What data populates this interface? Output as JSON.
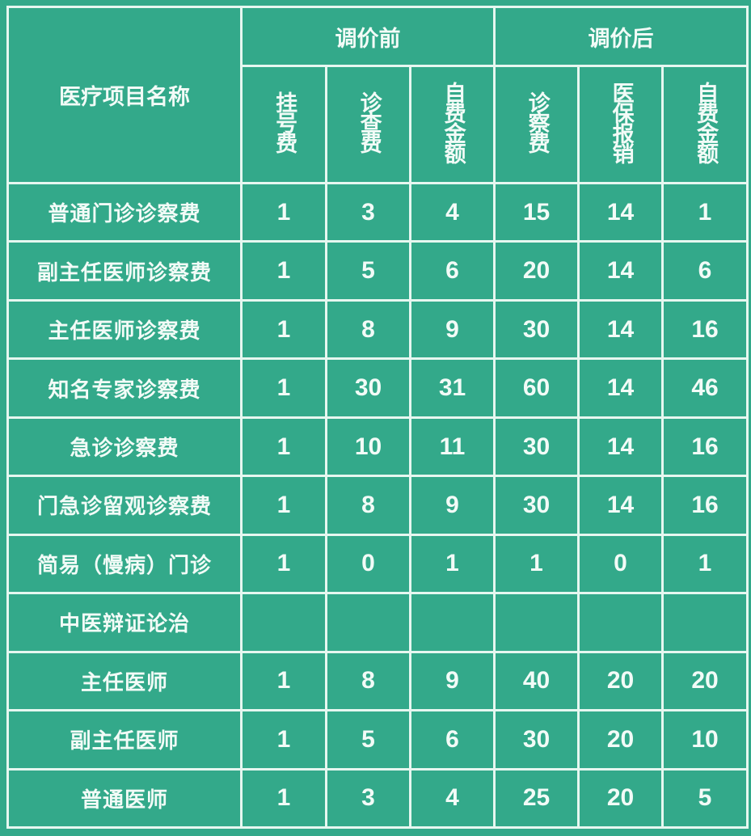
{
  "table": {
    "item_header": "医疗项目名称",
    "group_before": "调价前",
    "group_after": "调价后",
    "sub_headers": [
      "挂号费",
      "诊查费",
      "自费金额",
      "诊察费",
      "医保报销",
      "自费金额"
    ],
    "rows": [
      {
        "name": "普通门诊诊察费",
        "values": [
          "1",
          "3",
          "4",
          "15",
          "14",
          "1"
        ]
      },
      {
        "name": "副主任医师诊察费",
        "values": [
          "1",
          "5",
          "6",
          "20",
          "14",
          "6"
        ]
      },
      {
        "name": "主任医师诊察费",
        "values": [
          "1",
          "8",
          "9",
          "30",
          "14",
          "16"
        ]
      },
      {
        "name": "知名专家诊察费",
        "values": [
          "1",
          "30",
          "31",
          "60",
          "14",
          "46"
        ]
      },
      {
        "name": "急诊诊察费",
        "values": [
          "1",
          "10",
          "11",
          "30",
          "14",
          "16"
        ]
      },
      {
        "name": "门急诊留观诊察费",
        "values": [
          "1",
          "8",
          "9",
          "30",
          "14",
          "16"
        ]
      },
      {
        "name": "简易（慢病）门诊",
        "values": [
          "1",
          "0",
          "1",
          "1",
          "0",
          "1"
        ]
      },
      {
        "name": "中医辩证论治",
        "values": [
          "",
          "",
          "",
          "",
          "",
          ""
        ]
      },
      {
        "name": "主任医师",
        "values": [
          "1",
          "8",
          "9",
          "40",
          "20",
          "20"
        ]
      },
      {
        "name": "副主任医师",
        "values": [
          "1",
          "5",
          "6",
          "30",
          "20",
          "10"
        ]
      },
      {
        "name": "普通医师",
        "values": [
          "1",
          "3",
          "4",
          "25",
          "20",
          "5"
        ]
      }
    ]
  },
  "colors": {
    "background": "#33a98a",
    "lines": "#e6f7f0",
    "text": "#f2fbf7"
  }
}
